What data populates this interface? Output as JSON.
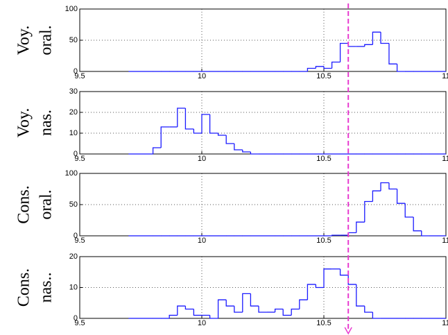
{
  "chart_data": [
    {
      "type": "histogram",
      "ylabel": [
        "Voy.",
        "oral."
      ],
      "color": "#1a1aff",
      "bins": [
        9.7,
        9.733,
        9.767,
        9.8,
        9.833,
        9.867,
        9.9,
        9.933,
        9.967,
        10,
        10.033,
        10.067,
        10.1,
        10.133,
        10.167,
        10.2,
        10.233,
        10.267,
        10.3,
        10.333,
        10.367,
        10.4,
        10.433,
        10.467,
        10.5,
        10.533,
        10.567,
        10.6,
        10.633,
        10.667,
        10.7,
        10.733,
        10.767,
        10.8,
        10.833,
        10.867,
        10.9,
        10.933,
        10.967,
        11
      ],
      "counts": [
        0,
        0,
        0,
        0,
        0,
        0,
        0,
        0,
        0,
        0,
        0,
        0,
        0,
        0,
        0,
        0,
        0,
        0,
        0,
        0,
        0,
        0,
        5,
        8,
        5,
        15,
        45,
        40,
        40,
        43,
        63,
        45,
        12,
        0,
        0,
        0,
        0,
        0,
        0
      ],
      "xlim": [
        9.5,
        11
      ],
      "xticks": [
        9.5,
        10,
        10.5,
        11
      ],
      "ylim": [
        0,
        100
      ],
      "yticks": [
        0,
        50,
        100
      ],
      "grid": true
    },
    {
      "type": "histogram",
      "ylabel": [
        "Voy.",
        "nas."
      ],
      "color": "#1a1aff",
      "bins": [
        9.7,
        9.733,
        9.767,
        9.8,
        9.833,
        9.867,
        9.9,
        9.933,
        9.967,
        10,
        10.033,
        10.067,
        10.1,
        10.133,
        10.167,
        10.2,
        10.233,
        10.267,
        10.3,
        10.333,
        10.367,
        10.4,
        10.433,
        10.467,
        10.5,
        10.533,
        10.567,
        10.6,
        10.633,
        10.667,
        10.7,
        10.733,
        10.767,
        10.8,
        10.833,
        10.867,
        10.9,
        10.933,
        10.967,
        11
      ],
      "counts": [
        0,
        0,
        0,
        3,
        13,
        13,
        22,
        12,
        10,
        19,
        10,
        9,
        5,
        2,
        1,
        0,
        0,
        0,
        0,
        0,
        0,
        0,
        0,
        0,
        0,
        0,
        0,
        0,
        0,
        0,
        0,
        0,
        0,
        0,
        0,
        0,
        0,
        0,
        0
      ],
      "xlim": [
        9.5,
        11
      ],
      "xticks": [
        9.5,
        10,
        10.5,
        11
      ],
      "ylim": [
        0,
        30
      ],
      "yticks": [
        0,
        10,
        20,
        30
      ],
      "grid": true
    },
    {
      "type": "histogram",
      "ylabel": [
        "Cons.",
        "oral."
      ],
      "color": "#1a1aff",
      "bins": [
        9.7,
        9.733,
        9.767,
        9.8,
        9.833,
        9.867,
        9.9,
        9.933,
        9.967,
        10,
        10.033,
        10.067,
        10.1,
        10.133,
        10.167,
        10.2,
        10.233,
        10.267,
        10.3,
        10.333,
        10.367,
        10.4,
        10.433,
        10.467,
        10.5,
        10.533,
        10.567,
        10.6,
        10.633,
        10.667,
        10.7,
        10.733,
        10.767,
        10.8,
        10.833,
        10.867,
        10.9,
        10.933,
        10.967,
        11
      ],
      "counts": [
        0,
        0,
        0,
        0,
        0,
        0,
        0,
        0,
        0,
        0,
        0,
        0,
        0,
        0,
        0,
        0,
        0,
        0,
        0,
        0,
        0,
        0,
        0,
        0,
        0,
        1,
        1,
        5,
        22,
        55,
        72,
        85,
        75,
        52,
        30,
        8,
        0,
        0,
        0
      ],
      "xlim": [
        9.5,
        11
      ],
      "xticks": [
        9.5,
        10,
        10.5,
        11
      ],
      "ylim": [
        0,
        100
      ],
      "yticks": [
        0,
        50,
        100
      ],
      "grid": true
    },
    {
      "type": "histogram",
      "ylabel": [
        "Cons.",
        "nas.."
      ],
      "color": "#1a1aff",
      "bins": [
        9.7,
        9.733,
        9.767,
        9.8,
        9.833,
        9.867,
        9.9,
        9.933,
        9.967,
        10,
        10.033,
        10.067,
        10.1,
        10.133,
        10.167,
        10.2,
        10.233,
        10.267,
        10.3,
        10.333,
        10.367,
        10.4,
        10.433,
        10.467,
        10.5,
        10.533,
        10.567,
        10.6,
        10.633,
        10.667,
        10.7,
        10.733,
        10.767,
        10.8,
        10.833,
        10.867,
        10.9,
        10.933,
        10.967,
        11
      ],
      "counts": [
        0,
        0,
        0,
        0,
        0,
        1,
        4,
        3,
        1,
        1,
        0,
        6,
        4,
        2,
        8,
        4,
        2,
        2,
        3,
        1,
        3,
        6,
        11,
        10,
        16,
        16,
        14,
        11,
        4,
        2,
        0,
        0,
        0,
        0,
        0,
        0,
        0,
        0,
        0
      ],
      "xlim": [
        9.5,
        11
      ],
      "xticks": [
        9.5,
        10,
        10.5,
        11
      ],
      "ylim": [
        0,
        20
      ],
      "yticks": [
        0,
        10,
        20
      ],
      "grid": true
    }
  ],
  "threshold": {
    "value": 10.6,
    "color": "#e83ad0"
  }
}
